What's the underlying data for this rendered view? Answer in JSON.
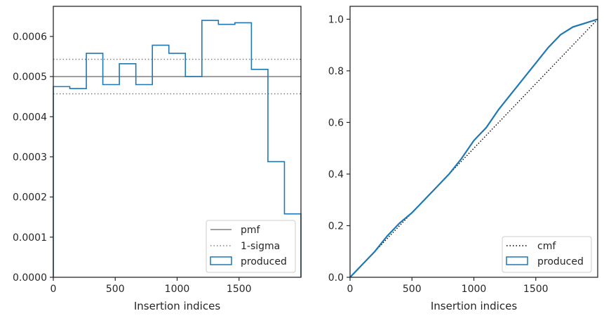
{
  "chart_data": [
    {
      "type": "step-histogram",
      "xlabel": "Insertion indices",
      "ylabel": "",
      "xlim": [
        0,
        2000
      ],
      "ylim": [
        0,
        0.000675
      ],
      "xticks": [
        0,
        500,
        1000,
        1500
      ],
      "xtick_labels": [
        "0",
        "500",
        "1000",
        "1500"
      ],
      "yticks": [
        0,
        0.0001,
        0.0002,
        0.0003,
        0.0004,
        0.0005,
        0.0006
      ],
      "ytick_labels": [
        "0.0000",
        "0.0001",
        "0.0002",
        "0.0003",
        "0.0004",
        "0.0005",
        "0.0006"
      ],
      "bins": [
        0,
        133.3,
        266.7,
        400,
        533.3,
        666.7,
        800,
        933.3,
        1066.7,
        1200,
        1333.3,
        1466.7,
        1600,
        1733.3,
        1866.7,
        2000
      ],
      "series": [
        {
          "name": "produced",
          "color": "#1f77b4",
          "values": [
            0.000475,
            0.00047,
            0.000558,
            0.00048,
            0.000532,
            0.00048,
            0.000578,
            0.000558,
            0.0005,
            0.00064,
            0.00063,
            0.000634,
            0.000518,
            0.000288,
            0.000158
          ]
        }
      ],
      "reference_lines": [
        {
          "name": "pmf",
          "y": 0.0005,
          "color": "#808080",
          "style": "solid"
        },
        {
          "name": "1-sigma",
          "y": 0.000543,
          "color": "#808080",
          "style": "dotted"
        },
        {
          "name": "1-sigma",
          "y": 0.000457,
          "color": "#808080",
          "style": "dotted"
        }
      ],
      "legend": {
        "placement": "lower-right",
        "entries": [
          "pmf",
          "1-sigma",
          "produced"
        ]
      }
    },
    {
      "type": "line",
      "xlabel": "Insertion indices",
      "ylabel": "",
      "xlim": [
        0,
        2000
      ],
      "ylim": [
        0,
        1.05
      ],
      "xticks": [
        0,
        500,
        1000,
        1500
      ],
      "xtick_labels": [
        "0",
        "500",
        "1000",
        "1500"
      ],
      "yticks": [
        0,
        0.2,
        0.4,
        0.6,
        0.8,
        1.0
      ],
      "ytick_labels": [
        "0.0",
        "0.2",
        "0.4",
        "0.6",
        "0.8",
        "1.0"
      ],
      "series": [
        {
          "name": "cmf",
          "color": "#000000",
          "style": "dotted",
          "x": [
            0,
            2000
          ],
          "y": [
            0,
            1.0
          ]
        },
        {
          "name": "produced",
          "color": "#1f77b4",
          "style": "solid",
          "x": [
            0,
            100,
            200,
            300,
            400,
            500,
            600,
            700,
            800,
            900,
            1000,
            1100,
            1200,
            1300,
            1400,
            1500,
            1600,
            1700,
            1800,
            1900,
            2000
          ],
          "y": [
            0,
            0.05,
            0.1,
            0.16,
            0.21,
            0.25,
            0.3,
            0.35,
            0.4,
            0.46,
            0.53,
            0.58,
            0.65,
            0.71,
            0.77,
            0.83,
            0.89,
            0.94,
            0.97,
            0.985,
            1.0
          ]
        }
      ],
      "legend": {
        "placement": "lower-right",
        "entries": [
          "cmf",
          "produced"
        ]
      }
    }
  ]
}
